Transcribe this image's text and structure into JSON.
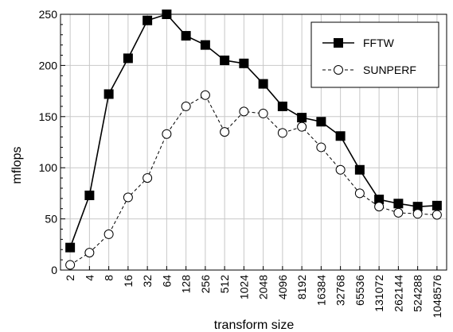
{
  "chart_data": {
    "type": "line",
    "xlabel": "transform size",
    "ylabel": "mflops",
    "ylim": [
      0,
      250
    ],
    "yticks": [
      0,
      50,
      100,
      150,
      200,
      250
    ],
    "categories": [
      "2",
      "4",
      "8",
      "16",
      "32",
      "64",
      "128",
      "256",
      "512",
      "1024",
      "2048",
      "4096",
      "8192",
      "16384",
      "32768",
      "65536",
      "131072",
      "262144",
      "524288",
      "1048576"
    ],
    "grid": true,
    "legend_position": "top-right",
    "series": [
      {
        "name": "FFTW",
        "marker": "filled-square",
        "line": "solid",
        "color": "#000000",
        "values": [
          22,
          73,
          172,
          207,
          244,
          250,
          229,
          220,
          205,
          202,
          182,
          160,
          149,
          145,
          131,
          98,
          69,
          65,
          62,
          63
        ]
      },
      {
        "name": "SUNPERF",
        "marker": "open-circle",
        "line": "dashed",
        "color": "#000000",
        "values": [
          5,
          17,
          35,
          71,
          90,
          133,
          160,
          171,
          135,
          155,
          153,
          134,
          140,
          120,
          98,
          75,
          62,
          56,
          55,
          54
        ]
      }
    ]
  }
}
